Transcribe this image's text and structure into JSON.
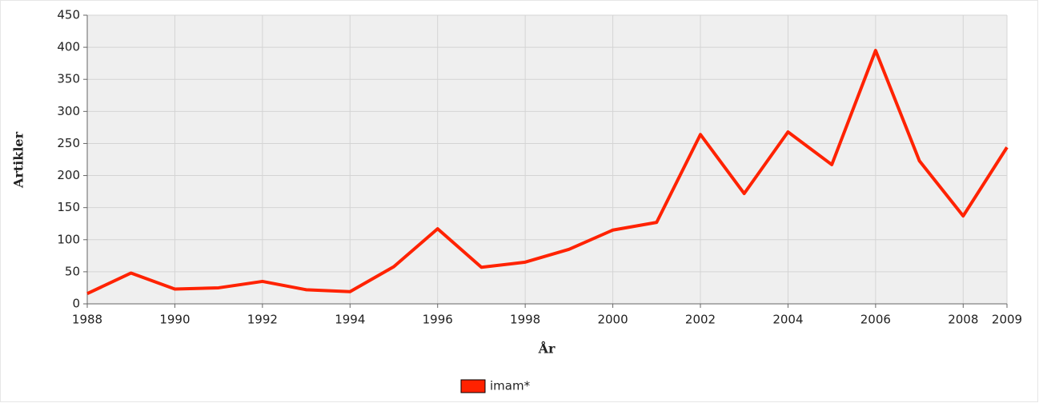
{
  "chart_data": {
    "type": "line",
    "x_label": "År",
    "y_label": "Artikler",
    "x": [
      1988,
      1989,
      1990,
      1991,
      1992,
      1993,
      1994,
      1995,
      1996,
      1997,
      1998,
      1999,
      2000,
      2001,
      2002,
      2003,
      2004,
      2005,
      2006,
      2007,
      2008,
      2009
    ],
    "series": [
      {
        "name": "imam*",
        "color": "#ff2200",
        "values": [
          16,
          48,
          23,
          25,
          35,
          22,
          19,
          58,
          117,
          57,
          65,
          85,
          115,
          127,
          264,
          172,
          268,
          217,
          395,
          223,
          137,
          244
        ]
      }
    ],
    "xlim": [
      1988,
      2009
    ],
    "xticks": [
      1988,
      1990,
      1992,
      1994,
      1996,
      1998,
      2000,
      2002,
      2004,
      2006,
      2008,
      2009
    ],
    "ylim": [
      0,
      450
    ],
    "yticks": [
      0,
      50,
      100,
      150,
      200,
      250,
      300,
      350,
      400,
      450
    ],
    "grid": true,
    "legend": "bottom"
  }
}
